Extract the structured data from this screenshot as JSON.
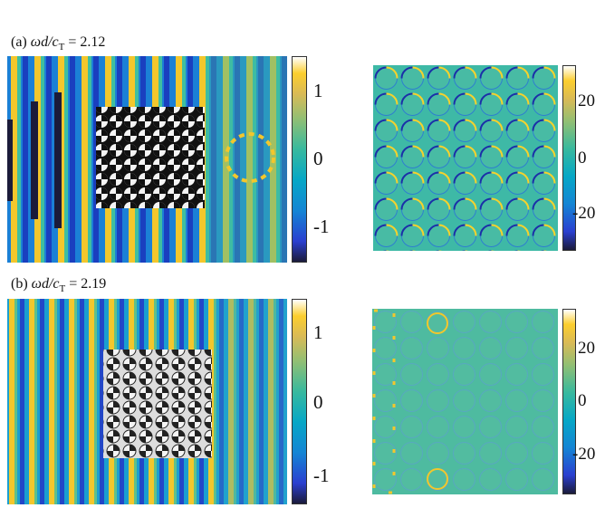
{
  "panels": [
    {
      "label_prefix": "(a) ",
      "label_expr": "ωd/c",
      "label_sub": "T",
      "label_value": " = 2.12",
      "left_ticks": [
        "1",
        "0",
        "-1"
      ],
      "right_ticks": [
        "20",
        "0",
        "-20"
      ]
    },
    {
      "label_prefix": "(b) ",
      "label_expr": "ωd/c",
      "label_sub": "T",
      "label_value": " = 2.19",
      "left_ticks": [
        "1",
        "0",
        "-1"
      ],
      "right_ticks": [
        "20",
        "0",
        "-20"
      ]
    }
  ],
  "colormap": [
    "#352a87",
    "#0363e1",
    "#1485d4",
    "#06a7c6",
    "#38b99e",
    "#92bf73",
    "#d9ba56",
    "#fcce2e",
    "#f9fb0e"
  ]
}
